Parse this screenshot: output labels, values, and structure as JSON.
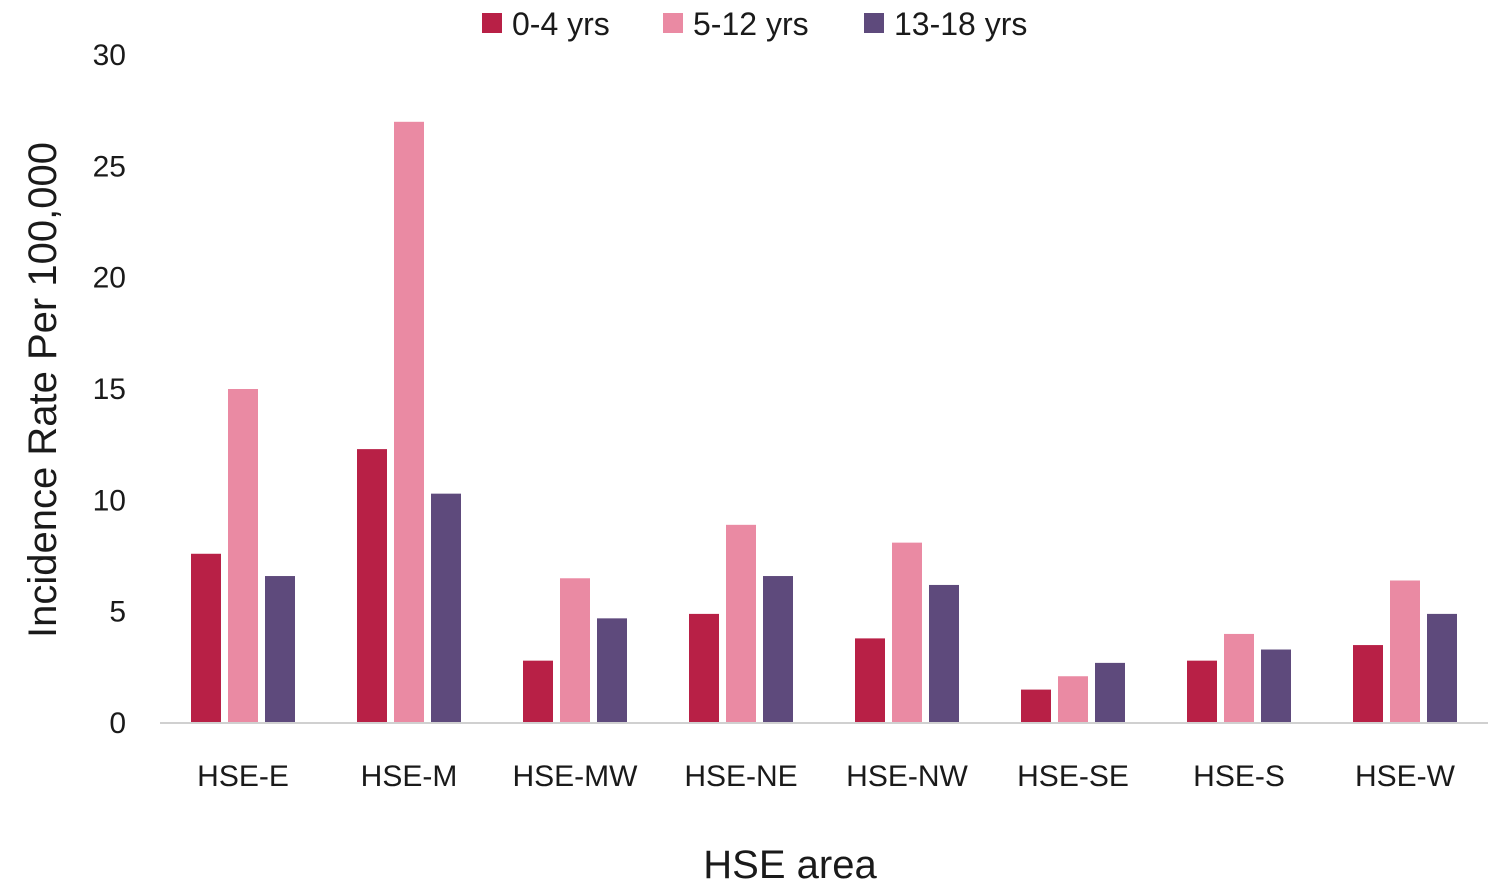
{
  "chart_data": {
    "type": "bar",
    "xlabel": "HSE area",
    "ylabel": "Incidence Rate Per 100,000",
    "ylim": [
      0,
      30
    ],
    "yticks": [
      0,
      5,
      10,
      15,
      20,
      25,
      30
    ],
    "grid": false,
    "legend_position": "top",
    "categories": [
      "HSE-E",
      "HSE-M",
      "HSE-MW",
      "HSE-NE",
      "HSE-NW",
      "HSE-SE",
      "HSE-S",
      "HSE-W"
    ],
    "series": [
      {
        "name": "0-4 yrs",
        "color": "#b82046",
        "values": [
          7.6,
          12.3,
          2.8,
          4.9,
          3.8,
          1.5,
          2.8,
          3.5
        ]
      },
      {
        "name": "5-12 yrs",
        "color": "#ea8aa3",
        "values": [
          15.0,
          27.0,
          6.5,
          8.9,
          8.1,
          2.1,
          4.0,
          6.4
        ]
      },
      {
        "name": "13-18 yrs",
        "color": "#5e4a7c",
        "values": [
          6.6,
          10.3,
          4.7,
          6.6,
          6.2,
          2.7,
          3.3,
          4.9
        ]
      }
    ]
  }
}
